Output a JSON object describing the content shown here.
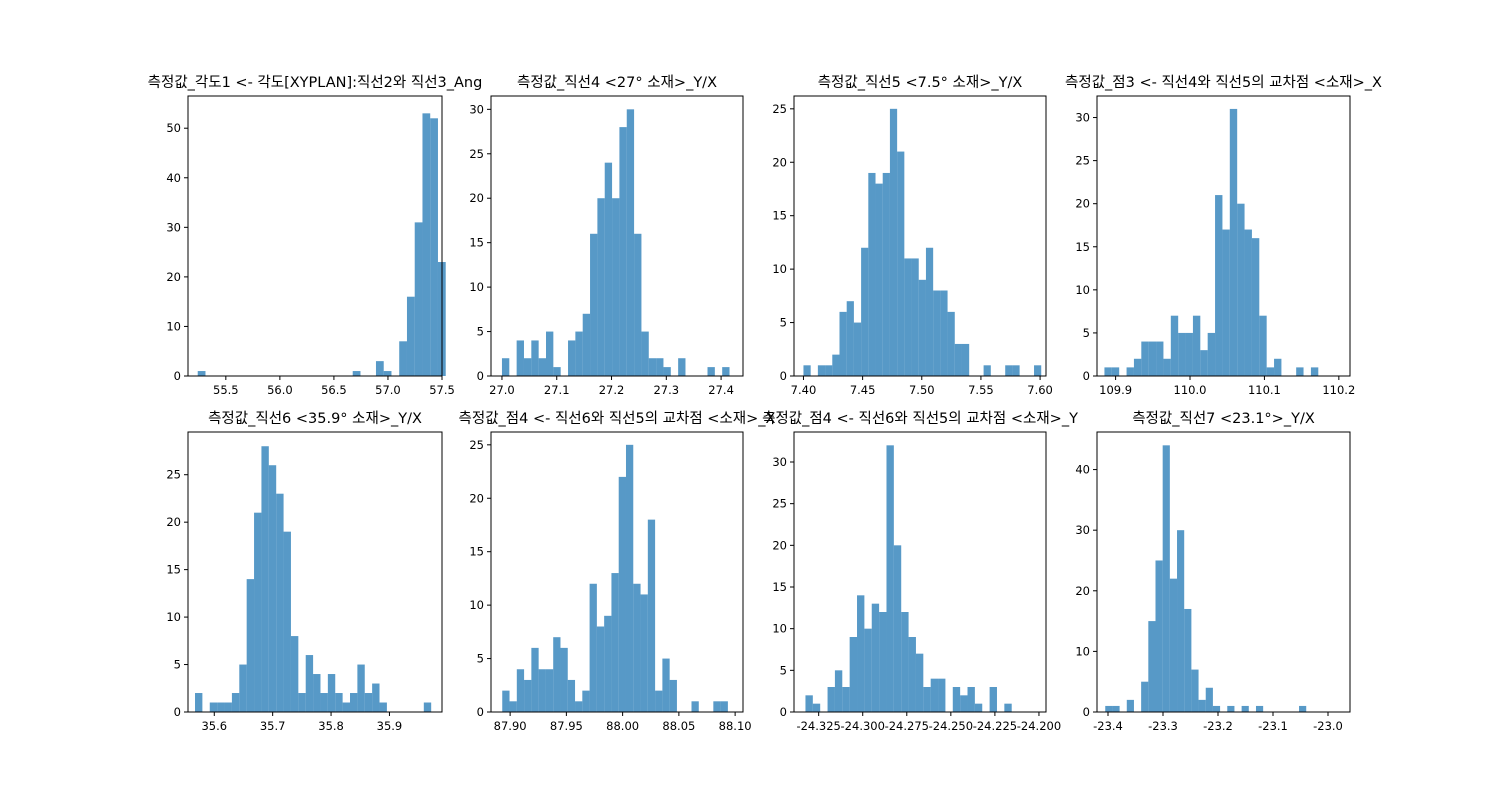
{
  "chart_data": [
    {
      "type": "bar",
      "title": "측정값_각도1 <- 각도[XYPLAN]:직선2와 직선3_Ang",
      "xlim": [
        55.15,
        57.5
      ],
      "ylim": [
        0,
        56.5
      ],
      "xticks": [
        55.5,
        56.0,
        56.5,
        57.0,
        57.5
      ],
      "xtick_labels": [
        "55.5",
        "56.0",
        "56.5",
        "57.0",
        "57.5"
      ],
      "yticks": [
        0,
        10,
        20,
        30,
        40,
        50
      ],
      "bin_start": 55.24,
      "bin_width": 0.0717,
      "counts": [
        1,
        0,
        0,
        0,
        0,
        0,
        0,
        0,
        0,
        0,
        0,
        0,
        0,
        0,
        0,
        0,
        0,
        0,
        0,
        0,
        1,
        0,
        0,
        3,
        1,
        0,
        7,
        16,
        31,
        53,
        52,
        23
      ]
    },
    {
      "type": "bar",
      "title": "측정값_직선4 <27° 소재>_Y/X",
      "xlim": [
        26.98,
        27.44
      ],
      "ylim": [
        0,
        31.5
      ],
      "xticks": [
        27.0,
        27.1,
        27.2,
        27.3,
        27.4
      ],
      "xtick_labels": [
        "27.0",
        "27.1",
        "27.2",
        "27.3",
        "27.4"
      ],
      "yticks": [
        0,
        5,
        10,
        15,
        20,
        25,
        30
      ],
      "bin_start": 27.0,
      "bin_width": 0.0134,
      "counts": [
        2,
        0,
        4,
        2,
        4,
        2,
        5,
        1,
        0,
        4,
        5,
        7,
        16,
        20,
        24,
        20,
        28,
        30,
        16,
        5,
        2,
        2,
        1,
        0,
        2,
        0,
        0,
        0,
        1,
        0,
        1
      ]
    },
    {
      "type": "bar",
      "title": "측정값_직선5 <7.5° 소재>_Y/X",
      "xlim": [
        7.392,
        7.605
      ],
      "ylim": [
        0,
        26.2
      ],
      "xticks": [
        7.4,
        7.45,
        7.5,
        7.55,
        7.6
      ],
      "xtick_labels": [
        "7.40",
        "7.45",
        "7.50",
        "7.55",
        "7.60"
      ],
      "yticks": [
        0,
        5,
        10,
        15,
        20,
        25
      ],
      "bin_start": 7.4,
      "bin_width": 0.00609,
      "counts": [
        1,
        0,
        1,
        1,
        2,
        6,
        7,
        5,
        12,
        19,
        18,
        19,
        25,
        21,
        11,
        11,
        9,
        12,
        8,
        8,
        6,
        3,
        3,
        0,
        0,
        1,
        0,
        0,
        1,
        1,
        0,
        0,
        1
      ]
    },
    {
      "type": "bar",
      "title": "측정값_점3 <- 직선4와 직선5의 교차점 <소재>_X",
      "xlim": [
        109.875,
        110.215
      ],
      "ylim": [
        0,
        32.5
      ],
      "xticks": [
        109.9,
        110.0,
        110.1,
        110.2
      ],
      "xtick_labels": [
        "109.9",
        "110.0",
        "110.1",
        "110.2"
      ],
      "yticks": [
        0,
        5,
        10,
        15,
        20,
        25,
        30
      ],
      "bin_start": 109.885,
      "bin_width": 0.00991,
      "counts": [
        1,
        1,
        0,
        1,
        2,
        4,
        4,
        4,
        2,
        7,
        5,
        5,
        7,
        3,
        5,
        21,
        17,
        31,
        20,
        17,
        16,
        7,
        1,
        2,
        0,
        0,
        1,
        0,
        1
      ]
    },
    {
      "type": "bar",
      "title": "측정값_직선6 <35.9° 소재>_Y/X",
      "xlim": [
        35.555,
        35.99
      ],
      "ylim": [
        0,
        29.5
      ],
      "xticks": [
        35.6,
        35.7,
        35.8,
        35.9
      ],
      "xtick_labels": [
        "35.6",
        "35.7",
        "35.8",
        "35.9"
      ],
      "yticks": [
        0,
        5,
        10,
        15,
        20,
        25
      ],
      "bin_start": 35.567,
      "bin_width": 0.01264,
      "counts": [
        2,
        0,
        1,
        1,
        1,
        2,
        5,
        14,
        21,
        28,
        26,
        23,
        19,
        8,
        2,
        6,
        4,
        2,
        4,
        2,
        1,
        2,
        5,
        2,
        3,
        1,
        0,
        0,
        0,
        0,
        0,
        1
      ]
    },
    {
      "type": "bar",
      "title": "측정값_점4 <- 직선6와 직선5의 교차점 <소재>_X",
      "xlim": [
        87.883,
        88.107
      ],
      "ylim": [
        0,
        26.2
      ],
      "xticks": [
        87.9,
        87.95,
        88.0,
        88.05,
        88.1
      ],
      "xtick_labels": [
        "87.90",
        "87.95",
        "88.00",
        "88.05",
        "88.10"
      ],
      "yticks": [
        0,
        5,
        10,
        15,
        20,
        25
      ],
      "bin_start": 87.893,
      "bin_width": 0.00647,
      "counts": [
        2,
        1,
        4,
        3,
        6,
        4,
        4,
        7,
        6,
        3,
        1,
        2,
        12,
        8,
        9,
        13,
        22,
        25,
        12,
        11,
        18,
        2,
        5,
        3,
        0,
        0,
        1,
        0,
        0,
        1,
        1
      ]
    },
    {
      "type": "bar",
      "title": "측정값_점4 <- 직선6와 직선5의 교차점 <소재>_Y",
      "xlim": [
        -24.339,
        -24.196
      ],
      "ylim": [
        0,
        33.6
      ],
      "xticks": [
        -24.325,
        -24.3,
        -24.275,
        -24.25,
        -24.225,
        -24.2
      ],
      "xtick_labels": [
        "-24.325",
        "-24.300",
        "-24.275",
        "-24.250",
        "-24.225",
        "-24.200"
      ],
      "yticks": [
        0,
        5,
        10,
        15,
        20,
        25,
        30
      ],
      "bin_start": -24.3325,
      "bin_width": 0.00418,
      "counts": [
        2,
        1,
        0,
        3,
        5,
        3,
        9,
        14,
        10,
        13,
        12,
        32,
        20,
        12,
        9,
        7,
        3,
        4,
        4,
        0,
        3,
        2,
        3,
        1,
        0,
        3,
        0,
        1
      ]
    },
    {
      "type": "bar",
      "title": "측정값_직선7 <23.1°>_Y/X",
      "xlim": [
        -23.42,
        -22.96
      ],
      "ylim": [
        0,
        46.2
      ],
      "xticks": [
        -23.4,
        -23.3,
        -23.2,
        -23.1,
        -23.0
      ],
      "xtick_labels": [
        "-23.4",
        "-23.3",
        "-23.2",
        "-23.1",
        "-23.0"
      ],
      "yticks": [
        0,
        10,
        20,
        30,
        40
      ],
      "bin_start": -23.405,
      "bin_width": 0.01305,
      "counts": [
        1,
        1,
        0,
        2,
        0,
        5,
        15,
        25,
        44,
        22,
        30,
        17,
        7,
        2,
        4,
        1,
        0,
        1,
        0,
        1,
        0,
        1,
        0,
        0,
        0,
        0,
        0,
        1
      ]
    }
  ]
}
